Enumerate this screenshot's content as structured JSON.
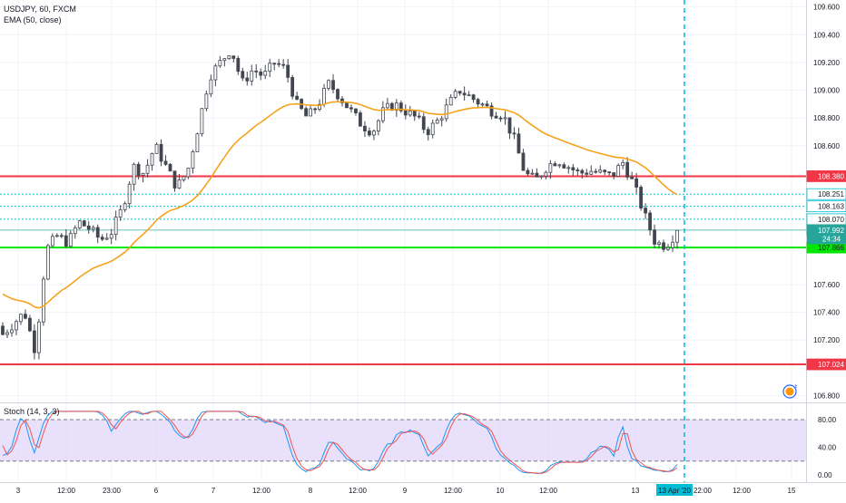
{
  "header": {
    "symbol_line": "USDJPY, 60, FXCM",
    "indicator_line": "EMA (50, close)"
  },
  "stoch_pane": {
    "label": "Stoch (14, 3, 3)",
    "ticks": [
      "80.00",
      "40.00",
      "0.00"
    ],
    "tick_values": [
      80,
      40,
      0
    ],
    "band_upper": 80,
    "band_lower": 20
  },
  "price_axis": {
    "ticks": [
      "109.600",
      "109.400",
      "109.200",
      "109.000",
      "108.800",
      "108.600",
      "107.600",
      "107.400",
      "107.200",
      "106.800"
    ],
    "tick_values": [
      109.6,
      109.4,
      109.2,
      109.0,
      108.8,
      108.6,
      107.6,
      107.4,
      107.2,
      106.8
    ],
    "min": 106.75,
    "max": 109.65
  },
  "time_axis": {
    "labels": [
      "3",
      "12:00",
      "23:00",
      "6",
      "7",
      "12:00",
      "8",
      "12:00",
      "9",
      "12:00",
      "10",
      "12:00",
      "13",
      "13 Apr '20",
      "22:00",
      "12:00",
      "15"
    ],
    "highlight_label": "13 Apr '20"
  },
  "levels": [
    {
      "price": 108.38,
      "label": "108.380",
      "color": "#f23645",
      "style": "solid"
    },
    {
      "price": 108.251,
      "label": "108.251",
      "color": "#00bcd4",
      "style": "dotted"
    },
    {
      "price": 108.163,
      "label": "108.163",
      "color": "#00bcd4",
      "style": "dotted"
    },
    {
      "price": 108.07,
      "label": "108.070",
      "color": "#00bcd4",
      "style": "dotted"
    },
    {
      "price": 107.992,
      "label": "107.992",
      "color": "#26a69a",
      "style": "thin"
    },
    {
      "price": 107.866,
      "label": "107.866",
      "color": "#00e600",
      "style": "solid"
    },
    {
      "price": 107.024,
      "label": "107.024",
      "color": "#f23645",
      "style": "solid"
    }
  ],
  "countdown_label": "24:34",
  "badge_count": "6",
  "colors": {
    "up": "#26a69a",
    "down": "#ef5350",
    "ema": "#f7a21b",
    "stoch_k": "#2196f3",
    "stoch_d": "#ef5350",
    "stoch_band": "#e1d5fb",
    "crosshair": "#00bcd4",
    "grid": "#f0f3fa",
    "axis_text": "#131722"
  },
  "chart_data": {
    "type": "candlestick",
    "title": "USDJPY, 60, FXCM",
    "indicators": [
      "EMA (50, close)",
      "Stoch (14, 3, 3)"
    ],
    "ohlc_anchors": [
      [
        107.3,
        107.36,
        107.16,
        107.24
      ],
      [
        107.24,
        107.36,
        107.2,
        107.32
      ],
      [
        107.32,
        107.45,
        107.25,
        107.4
      ],
      [
        107.4,
        107.45,
        107.05,
        107.12
      ],
      [
        107.12,
        107.9,
        107.1,
        107.85
      ],
      [
        107.85,
        108.0,
        107.82,
        107.95
      ],
      [
        107.95,
        108.0,
        107.85,
        107.9
      ],
      [
        107.9,
        108.1,
        107.85,
        108.05
      ],
      [
        108.05,
        108.15,
        107.95,
        108.0
      ],
      [
        108.0,
        108.05,
        107.85,
        107.92
      ],
      [
        107.92,
        108.0,
        107.88,
        107.98
      ],
      [
        107.98,
        108.2,
        107.95,
        108.15
      ],
      [
        108.15,
        108.5,
        108.1,
        108.45
      ],
      [
        108.45,
        108.6,
        108.35,
        108.4
      ],
      [
        108.4,
        108.7,
        108.35,
        108.6
      ],
      [
        108.6,
        108.65,
        108.4,
        108.45
      ],
      [
        108.45,
        108.55,
        108.2,
        108.3
      ],
      [
        108.3,
        108.45,
        108.25,
        108.42
      ],
      [
        108.42,
        108.8,
        108.4,
        108.75
      ],
      [
        108.75,
        109.2,
        108.7,
        109.1
      ],
      [
        109.1,
        109.3,
        109.0,
        109.2
      ],
      [
        109.2,
        109.4,
        109.15,
        109.3
      ],
      [
        109.3,
        109.35,
        109.0,
        109.05
      ],
      [
        109.05,
        109.2,
        108.95,
        109.15
      ],
      [
        109.15,
        109.25,
        109.05,
        109.1
      ],
      [
        109.1,
        109.25,
        109.05,
        109.2
      ],
      [
        109.2,
        109.25,
        109.1,
        109.15
      ],
      [
        109.15,
        109.2,
        108.85,
        108.9
      ],
      [
        108.9,
        108.95,
        108.7,
        108.8
      ],
      [
        108.8,
        108.95,
        108.75,
        108.9
      ],
      [
        108.9,
        109.1,
        108.85,
        109.05
      ],
      [
        109.05,
        109.1,
        108.9,
        108.95
      ],
      [
        108.95,
        109.0,
        108.8,
        108.85
      ],
      [
        108.85,
        108.9,
        108.7,
        108.75
      ],
      [
        108.75,
        108.85,
        108.55,
        108.7
      ],
      [
        108.7,
        108.9,
        108.65,
        108.85
      ],
      [
        108.85,
        108.95,
        108.75,
        108.9
      ],
      [
        108.9,
        109.0,
        108.8,
        108.85
      ],
      [
        108.85,
        108.9,
        108.75,
        108.8
      ],
      [
        108.8,
        108.85,
        108.65,
        108.7
      ],
      [
        108.7,
        108.8,
        108.65,
        108.78
      ],
      [
        108.78,
        108.95,
        108.75,
        108.9
      ],
      [
        108.9,
        109.05,
        108.85,
        109.0
      ],
      [
        109.0,
        109.05,
        108.9,
        108.95
      ],
      [
        108.95,
        109.0,
        108.85,
        108.9
      ],
      [
        108.9,
        108.95,
        108.8,
        108.85
      ],
      [
        108.85,
        108.9,
        108.75,
        108.82
      ],
      [
        108.82,
        108.85,
        108.6,
        108.65
      ],
      [
        108.65,
        108.7,
        108.35,
        108.4
      ],
      [
        108.4,
        108.45,
        108.25,
        108.35
      ],
      [
        108.35,
        108.5,
        108.3,
        108.45
      ],
      [
        108.45,
        108.55,
        108.4,
        108.5
      ],
      [
        108.5,
        108.55,
        108.4,
        108.45
      ],
      [
        108.45,
        108.5,
        108.35,
        108.4
      ],
      [
        108.4,
        108.45,
        108.35,
        108.42
      ],
      [
        108.42,
        108.48,
        108.35,
        108.4
      ],
      [
        108.4,
        108.45,
        108.35,
        108.38
      ],
      [
        108.38,
        108.52,
        108.36,
        108.48
      ],
      [
        108.48,
        108.5,
        108.3,
        108.32
      ],
      [
        108.32,
        108.35,
        108.05,
        108.1
      ],
      [
        108.1,
        108.12,
        107.85,
        107.9
      ],
      [
        107.9,
        107.95,
        107.84,
        107.88
      ],
      [
        107.88,
        108.0,
        107.85,
        107.99
      ]
    ]
  }
}
